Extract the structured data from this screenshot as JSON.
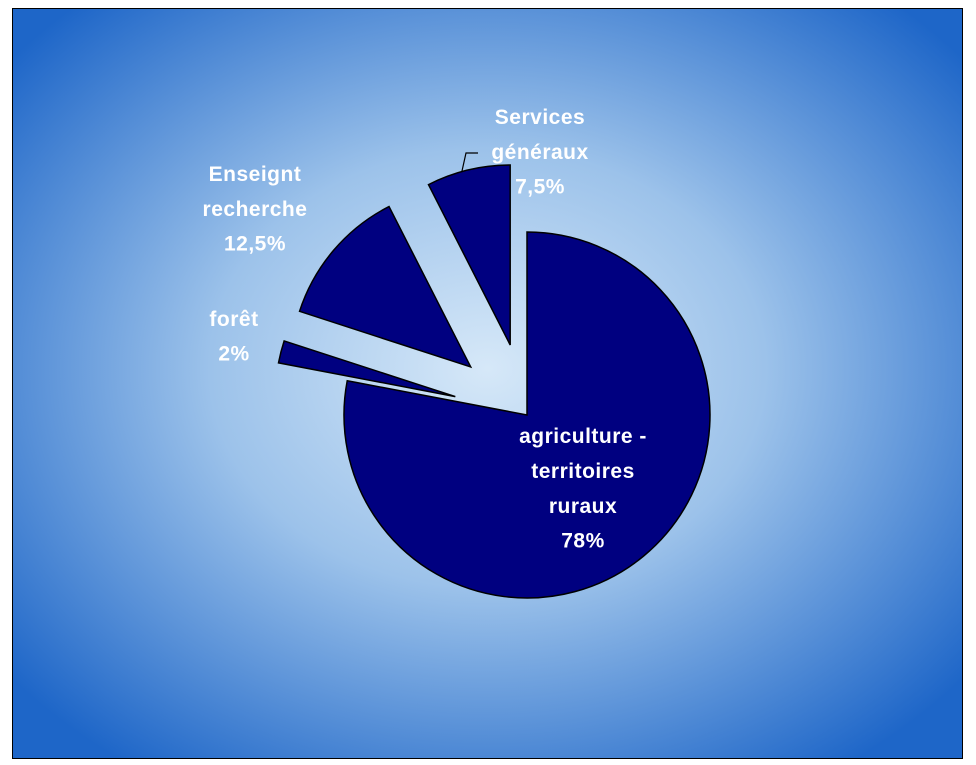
{
  "chart_data": {
    "type": "pie",
    "categories": [
      "agriculture - territoires ruraux",
      "forêt",
      "Enseignt recherche",
      "Services généraux"
    ],
    "values": [
      78,
      2,
      12.5,
      7.5
    ],
    "value_labels": [
      "78%",
      "2%",
      "12,5%",
      "7,5%"
    ],
    "color": "#000080"
  }
}
